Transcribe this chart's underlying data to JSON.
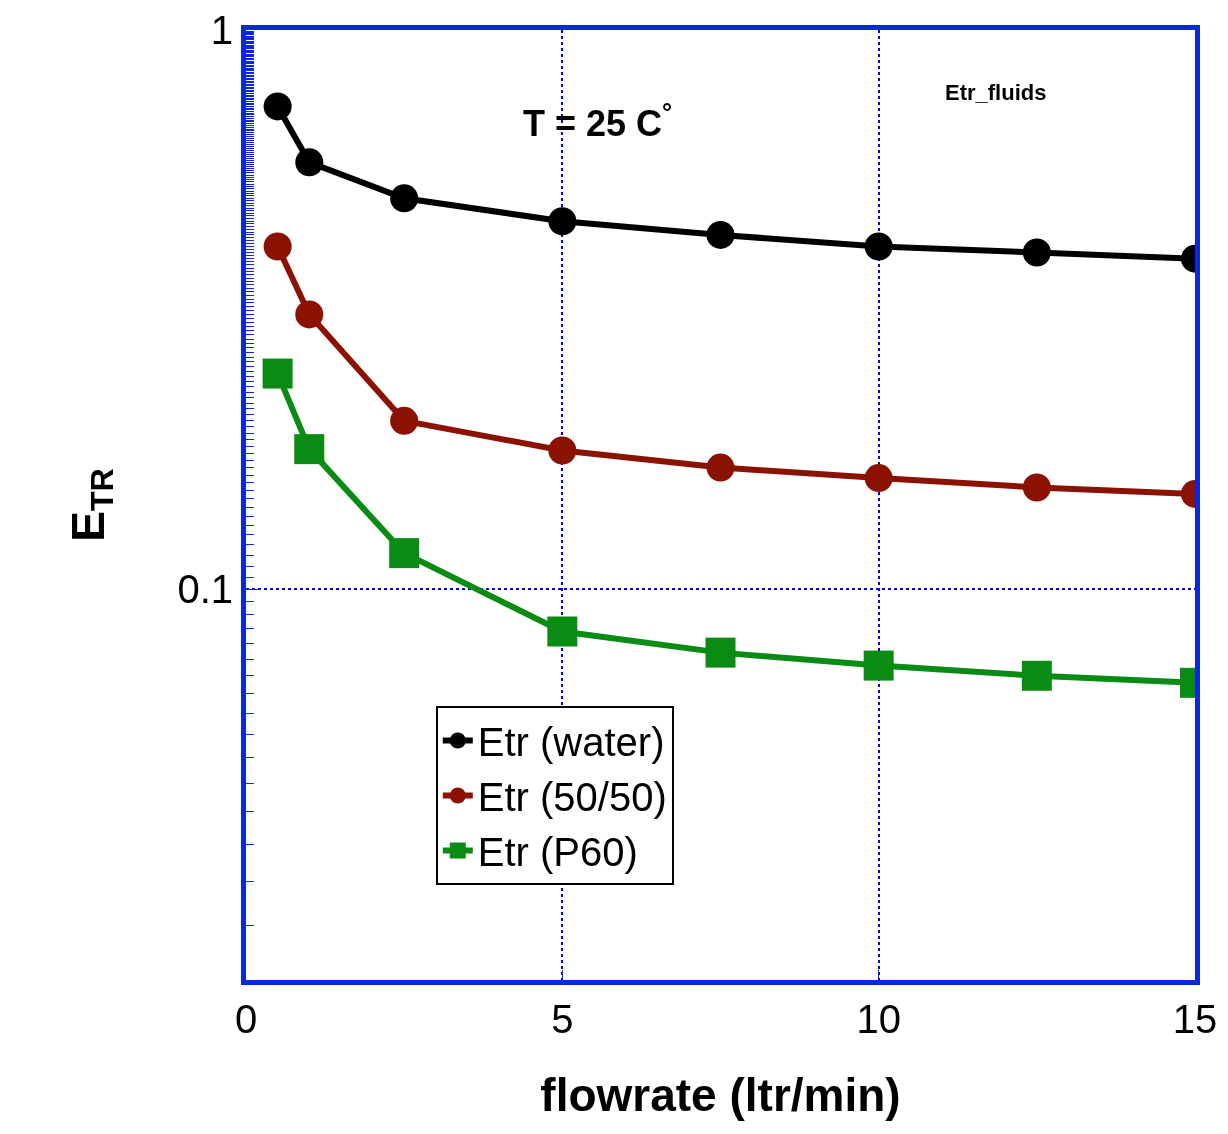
{
  "chart_data": {
    "type": "line",
    "xlabel": "flowrate (ltr/min)",
    "ylabel": "E$_{TR}$",
    "x": [
      0.5,
      1,
      2.5,
      5,
      7.5,
      10,
      12.5,
      15
    ],
    "series": [
      {
        "name": "Etr (water)",
        "color": "#000000",
        "marker": "circle",
        "values": [
          0.73,
          0.58,
          0.5,
          0.455,
          0.43,
          0.41,
          0.4,
          0.39
        ]
      },
      {
        "name": "Etr (50/50)",
        "color": "#8b1200",
        "marker": "circle",
        "values": [
          0.41,
          0.31,
          0.2,
          0.177,
          0.165,
          0.158,
          0.152,
          0.148
        ]
      },
      {
        "name": "Etr (P60)",
        "color": "#0a8c14",
        "marker": "square",
        "values": [
          0.243,
          0.178,
          0.116,
          0.084,
          0.077,
          0.073,
          0.07,
          0.068
        ]
      }
    ],
    "xlim": [
      0,
      15
    ],
    "xticks": [
      0,
      5,
      10,
      15
    ],
    "ylim": [
      0.02,
      1
    ],
    "yticks": [
      0.1,
      1
    ],
    "log": "y",
    "grid": true,
    "legend": "bottom",
    "line_style": "solid",
    "annotations": [
      {
        "text": "T = 25 C$^{°}$"
      },
      {
        "text": "Etr_fluids"
      }
    ]
  }
}
